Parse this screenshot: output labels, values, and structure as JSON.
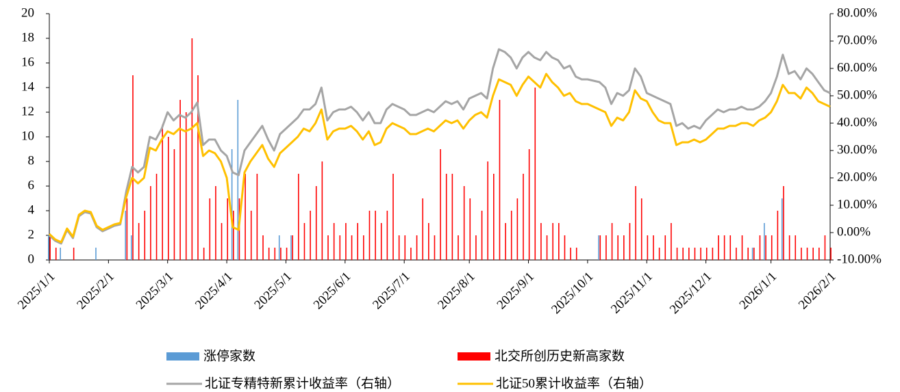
{
  "chart_data": {
    "type": "combo",
    "categories": [
      "2025/1/1",
      null,
      null,
      null,
      null,
      null,
      null,
      null,
      null,
      null,
      "2025/2/1",
      null,
      null,
      null,
      null,
      null,
      null,
      null,
      null,
      null,
      "2025/3/1",
      null,
      null,
      null,
      null,
      null,
      null,
      null,
      null,
      null,
      "2025/4/1",
      null,
      null,
      null,
      null,
      null,
      null,
      null,
      null,
      null,
      "2025/5/1",
      null,
      null,
      null,
      null,
      null,
      null,
      null,
      null,
      null,
      "2025/6/1",
      null,
      null,
      null,
      null,
      null,
      null,
      null,
      null,
      null,
      "2025/7/1",
      null,
      null,
      null,
      null,
      null,
      null,
      null,
      null,
      null,
      null,
      "2025/8/1",
      null,
      null,
      null,
      null,
      null,
      null,
      null,
      null,
      null,
      "2025/9/1",
      null,
      null,
      null,
      null,
      null,
      null,
      null,
      null,
      null,
      "2025/10/1",
      null,
      null,
      null,
      null,
      null,
      null,
      null,
      null,
      null,
      "2025/11/1",
      null,
      null,
      null,
      null,
      null,
      null,
      null,
      null,
      null,
      "2025/12/1",
      null,
      null,
      null,
      null,
      null,
      null,
      null,
      null,
      null,
      null,
      "2026/1/1",
      null,
      null,
      null,
      null,
      null,
      null,
      null,
      null,
      null,
      "2026/2/1"
    ],
    "series": [
      {
        "name": "涨停家数",
        "type": "bar",
        "color": "#5b9bd5",
        "values": [
          2,
          0,
          1,
          0,
          0,
          0,
          0,
          0,
          1,
          0,
          0,
          0,
          0,
          4,
          2,
          0,
          0,
          0,
          0,
          0,
          0,
          0,
          0,
          0,
          0,
          0,
          0,
          0,
          0,
          0,
          0,
          9,
          13,
          0,
          0,
          0,
          0,
          0,
          0,
          2,
          0,
          2,
          0,
          0,
          0,
          0,
          0,
          0,
          0,
          0,
          0,
          0,
          0,
          0,
          0,
          0,
          0,
          0,
          0,
          0,
          0,
          0,
          0,
          0,
          0,
          0,
          0,
          0,
          0,
          0,
          0,
          0,
          0,
          0,
          0,
          0,
          0,
          0,
          0,
          0,
          0,
          0,
          0,
          0,
          0,
          0,
          0,
          0,
          0,
          0,
          0,
          0,
          0,
          2,
          0,
          0,
          0,
          0,
          0,
          0,
          0,
          0,
          0,
          0,
          0,
          0,
          0,
          0,
          0,
          0,
          0,
          0,
          0,
          0,
          0,
          0,
          0,
          0,
          0,
          1,
          0,
          3,
          0,
          0,
          5,
          0,
          0,
          0,
          0,
          0,
          0,
          0,
          0
        ]
      },
      {
        "name": "北交所创历史新高家数",
        "type": "bar",
        "color": "#ff0000",
        "values": [
          2,
          1,
          0,
          0,
          1,
          0,
          0,
          0,
          0,
          0,
          0,
          0,
          0,
          5,
          15,
          3,
          4,
          6,
          7,
          11,
          10,
          9,
          13,
          12,
          18,
          15,
          1,
          5,
          6,
          3,
          5,
          4,
          5,
          7,
          4,
          7,
          2,
          1,
          1,
          1,
          1,
          2,
          7,
          3,
          4,
          6,
          8,
          2,
          3,
          2,
          3,
          2,
          3,
          2,
          4,
          4,
          3,
          4,
          7,
          2,
          2,
          1,
          2,
          5,
          3,
          2,
          9,
          7,
          7,
          2,
          6,
          5,
          2,
          4,
          8,
          7,
          13,
          3,
          4,
          5,
          7,
          9,
          14,
          3,
          2,
          3,
          3,
          2,
          1,
          1,
          0,
          0,
          0,
          2,
          2,
          3,
          2,
          2,
          3,
          6,
          5,
          2,
          2,
          1,
          2,
          3,
          1,
          1,
          1,
          1,
          1,
          1,
          1,
          2,
          2,
          2,
          1,
          2,
          1,
          1,
          2,
          2,
          2,
          4,
          6,
          2,
          2,
          1,
          1,
          1,
          1,
          2,
          1
        ]
      },
      {
        "name": "北证专精特新累计收益率（右轴）",
        "type": "line",
        "axis": "y2",
        "color": "#a5a5a5",
        "values": [
          -1,
          -3,
          -4,
          1,
          -2,
          6,
          7.5,
          7,
          2,
          0.5,
          1.5,
          2.5,
          3,
          15,
          24,
          22,
          24,
          35,
          34,
          38,
          44,
          41,
          43,
          42,
          44,
          47.5,
          32,
          34,
          34,
          30,
          28,
          22,
          21,
          30,
          33,
          36,
          39,
          34,
          30,
          36,
          38,
          40,
          42,
          45,
          45,
          47,
          53,
          41,
          44,
          45,
          45,
          46,
          44,
          41,
          44,
          40,
          40,
          45,
          47,
          46,
          45,
          43,
          43,
          44,
          45,
          44,
          46,
          48,
          47,
          48,
          45,
          49,
          50,
          51,
          49,
          60,
          67,
          66,
          64,
          60,
          64,
          66,
          64,
          63,
          66,
          64,
          63,
          60,
          61,
          57,
          56,
          56,
          55.5,
          55,
          53,
          47,
          51,
          50,
          52,
          60,
          57,
          51,
          50,
          49,
          48,
          47,
          39,
          40,
          38,
          39,
          38,
          41,
          43,
          45,
          44,
          45,
          45,
          46,
          45,
          45,
          46,
          48,
          51,
          57,
          65,
          58,
          59,
          56,
          60,
          58,
          55,
          52,
          51
        ]
      },
      {
        "name": "北证50累计收益率（右轴）",
        "type": "line",
        "axis": "y2",
        "color": "#ffc000",
        "values": [
          -0.5,
          -2.5,
          -3.5,
          1.5,
          -1.5,
          6.5,
          8,
          7.5,
          2.5,
          1,
          2,
          3,
          3.5,
          13,
          20,
          18,
          20,
          31,
          30,
          34,
          37,
          36,
          38,
          37,
          38,
          40,
          28,
          30,
          29,
          26,
          20,
          2,
          1,
          22,
          26,
          29,
          32,
          27,
          24,
          29,
          31,
          33,
          35,
          38,
          37,
          40,
          45,
          34,
          37,
          38,
          38,
          39,
          37,
          34,
          37,
          32,
          33,
          38,
          40,
          39,
          38,
          36,
          36,
          37,
          38,
          37,
          39,
          41,
          40,
          41,
          38,
          41,
          43,
          44,
          42,
          50,
          56,
          55,
          54,
          50,
          54,
          57,
          55,
          53,
          58,
          55,
          53,
          50,
          51,
          48,
          47,
          47,
          46,
          45,
          44,
          39,
          42,
          41,
          44,
          52,
          49,
          48,
          44,
          41,
          40,
          40,
          32,
          33,
          33,
          34,
          33,
          34,
          36,
          38,
          38,
          39,
          39,
          40,
          40,
          39,
          41,
          42,
          44,
          48,
          54,
          51,
          51,
          49,
          53,
          51,
          48,
          47,
          46
        ]
      }
    ],
    "ylim": [
      0,
      20
    ],
    "yticks": [
      0,
      2,
      4,
      6,
      8,
      10,
      12,
      14,
      16,
      18,
      20
    ],
    "y2lim": [
      -10,
      80
    ],
    "y2ticks": [
      {
        "value": -10,
        "label": "-10.00%"
      },
      {
        "value": 0,
        "label": "0.00%"
      },
      {
        "value": 10,
        "label": "10.00%"
      },
      {
        "value": 20,
        "label": "20.00%"
      },
      {
        "value": 30,
        "label": "30.00%"
      },
      {
        "value": 40,
        "label": "40.00%"
      },
      {
        "value": 50,
        "label": "50.00%"
      },
      {
        "value": 60,
        "label": "60.00%"
      },
      {
        "value": 70,
        "label": "70.00%"
      },
      {
        "value": 80,
        "label": "80.00%"
      }
    ],
    "grid": false,
    "legend": "bottom"
  }
}
